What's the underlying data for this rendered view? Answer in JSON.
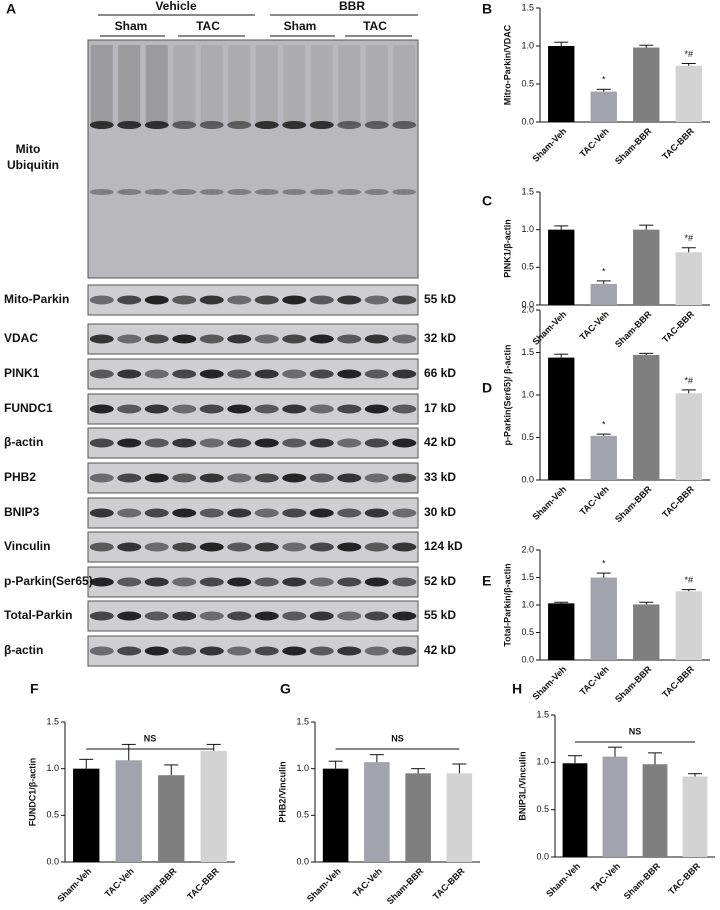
{
  "blot": {
    "panel": "A",
    "groups": [
      "Vehicle",
      "BBR"
    ],
    "subgroups": [
      "Sham",
      "TAC",
      "Sham",
      "TAC"
    ],
    "top_label": [
      "Mito",
      "Ubiquitin"
    ],
    "rows": [
      {
        "label": "Mito-Parkin",
        "size": "55 kD"
      },
      {
        "label": "VDAC",
        "size": "32 kD"
      },
      {
        "label": "PINK1",
        "size": "66 kD"
      },
      {
        "label": "FUNDC1",
        "size": "17 kD"
      },
      {
        "label": "β-actin",
        "size": "42 kD"
      },
      {
        "label": "PHB2",
        "size": "33 kD"
      },
      {
        "label": "BNIP3",
        "size": "30 kD"
      },
      {
        "label": "Vinculin",
        "size": "124 kD"
      },
      {
        "label": "p-Parkin(Ser65)",
        "size": "52 kD"
      },
      {
        "label": "Total-Parkin",
        "size": "55 kD"
      },
      {
        "label": "β-actin",
        "size": "42 kD"
      }
    ]
  },
  "chart_data": [
    {
      "type": "bar",
      "panel": "B",
      "ylabel": "Mitro-Parkin/VDAC",
      "categories": [
        "Sham-Veh",
        "TAC-Veh",
        "Sham-BBR",
        "TAC-BBR"
      ],
      "values": [
        1.0,
        0.4,
        0.98,
        0.74
      ],
      "errors": [
        0.05,
        0.03,
        0.03,
        0.03
      ],
      "annotations": [
        null,
        "*",
        null,
        "*#"
      ],
      "colors": [
        "#000000",
        "#a3a3ad",
        "#7f7f7f",
        "#d3d3d3"
      ],
      "ylim": [
        0,
        1.5
      ],
      "yticks": [
        {
          "value": 0,
          "label": "0.0"
        },
        0.5,
        {
          "value": 1,
          "label": "1.0"
        },
        1.5
      ]
    },
    {
      "type": "bar",
      "panel": "C",
      "ylabel": "PINK1/β-actin",
      "categories": [
        "Sham-Veh",
        "TAC-Veh",
        "Sham-BBR",
        "TAC-BBR"
      ],
      "values": [
        1.0,
        0.28,
        1.0,
        0.7
      ],
      "errors": [
        0.05,
        0.04,
        0.06,
        0.06
      ],
      "annotations": [
        null,
        "*",
        null,
        "*#"
      ],
      "colors": [
        "#000000",
        "#a3a3ad",
        "#7f7f7f",
        "#d3d3d3"
      ],
      "ylim": [
        0,
        1.5
      ],
      "yticks": [
        {
          "value": 0,
          "label": "0.0"
        },
        0.5,
        {
          "value": 1,
          "label": "1.0"
        },
        1.5
      ]
    },
    {
      "type": "bar",
      "panel": "D",
      "ylabel": "p-Parkin(Ser65)/ β-actin",
      "categories": [
        "Sham-Veh",
        "TAC-Veh",
        "Sham-BBR",
        "TAC-BBR"
      ],
      "values": [
        1.44,
        0.52,
        1.47,
        1.02
      ],
      "errors": [
        0.04,
        0.02,
        0.02,
        0.04
      ],
      "annotations": [
        null,
        "*",
        null,
        "*#"
      ],
      "colors": [
        "#000000",
        "#a3a3ad",
        "#7f7f7f",
        "#d3d3d3"
      ],
      "ylim": [
        0,
        2
      ],
      "yticks": [
        {
          "value": 0,
          "label": "0.0"
        },
        0.5,
        {
          "value": 1,
          "label": "1.0"
        },
        1.5,
        {
          "value": 2,
          "label": "2.0"
        }
      ]
    },
    {
      "type": "bar",
      "panel": "E",
      "ylabel": "Total-Parkin/β-actin",
      "categories": [
        "Sham-Veh",
        "TAC-Veh",
        "Sham-BBR",
        "TAC-BBR"
      ],
      "values": [
        1.03,
        1.5,
        1.01,
        1.25
      ],
      "errors": [
        0.02,
        0.08,
        0.04,
        0.03
      ],
      "annotations": [
        null,
        "*",
        null,
        "*#"
      ],
      "colors": [
        "#000000",
        "#a3a3ad",
        "#7f7f7f",
        "#d3d3d3"
      ],
      "ylim": [
        0,
        2
      ],
      "yticks": [
        {
          "value": 0,
          "label": "0.0"
        },
        0.5,
        {
          "value": 1,
          "label": "1.0"
        },
        1.5,
        {
          "value": 2,
          "label": "2.0"
        }
      ]
    },
    {
      "type": "bar",
      "panel": "F",
      "ylabel": "FUNDC1/β-actin",
      "categories": [
        "Sham-Veh",
        "TAC-Veh",
        "Sham-BBR",
        "TAC-BBR"
      ],
      "values": [
        1.0,
        1.09,
        0.93,
        1.19
      ],
      "errors": [
        0.1,
        0.17,
        0.11,
        0.07
      ],
      "annotation": "NS",
      "colors": [
        "#000000",
        "#a3a3ad",
        "#7f7f7f",
        "#d3d3d3"
      ],
      "ylim": [
        0,
        1.5
      ],
      "yticks": [
        {
          "value": 0,
          "label": "0.0"
        },
        0.5,
        {
          "value": 1,
          "label": "1.0"
        },
        1.5
      ]
    },
    {
      "type": "bar",
      "panel": "G",
      "ylabel": "PHB2/Vinculin",
      "categories": [
        "Sham-Veh",
        "TAC-Veh",
        "Sham-BBR",
        "TAC-BBR"
      ],
      "values": [
        1.0,
        1.07,
        0.95,
        0.95
      ],
      "errors": [
        0.08,
        0.08,
        0.05,
        0.1
      ],
      "annotation": "NS",
      "colors": [
        "#000000",
        "#a3a3ad",
        "#7f7f7f",
        "#d3d3d3"
      ],
      "ylim": [
        0,
        1.5
      ],
      "yticks": [
        {
          "value": 0,
          "label": "0.0"
        },
        0.5,
        {
          "value": 1,
          "label": "1.0"
        },
        1.5
      ]
    },
    {
      "type": "bar",
      "panel": "H",
      "ylabel": "BNIP3L/Vinculin",
      "categories": [
        "Sham-Veh",
        "TAC-Veh",
        "Sham-BBR",
        "TAC-BBR"
      ],
      "values": [
        0.99,
        1.06,
        0.98,
        0.85
      ],
      "errors": [
        0.08,
        0.1,
        0.12,
        0.03
      ],
      "annotation": "NS",
      "colors": [
        "#000000",
        "#a3a3ad",
        "#7f7f7f",
        "#d3d3d3"
      ],
      "ylim": [
        0,
        1.5
      ],
      "yticks": [
        {
          "value": 0,
          "label": "0.0"
        },
        0.5,
        {
          "value": 1,
          "label": "1.0"
        },
        1.5
      ]
    }
  ]
}
